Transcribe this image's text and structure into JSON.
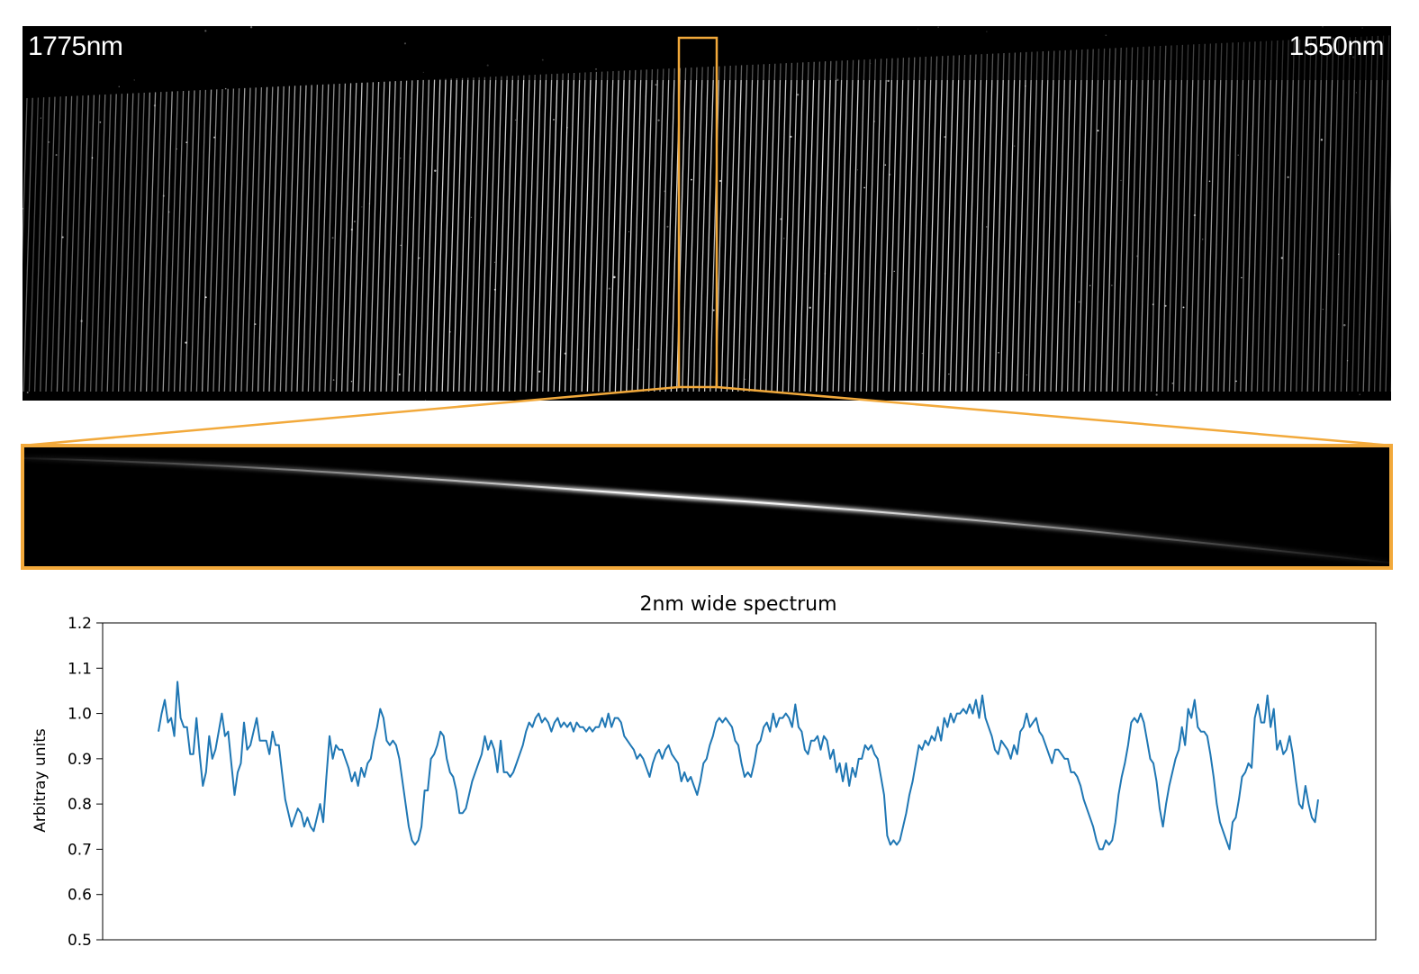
{
  "image": {
    "left_wavelength_label": "1775nm",
    "right_wavelength_label": "1550nm",
    "highlight_color": "#f2a93b"
  },
  "chart_data": {
    "type": "line",
    "title": "2nm wide spectrum",
    "xlabel": "",
    "ylabel": "Arbitray units",
    "ylim": [
      0.5,
      1.2
    ],
    "yticks": [
      "0.5",
      "0.6",
      "0.7",
      "0.8",
      "0.9",
      "1.0",
      "1.1",
      "1.2"
    ],
    "xticks_visible": false,
    "grid": false,
    "line_color": "#1f77b4",
    "series": [
      {
        "name": "",
        "values": [
          0.96,
          1.0,
          1.03,
          0.98,
          0.99,
          0.95,
          1.07,
          0.99,
          0.97,
          0.97,
          0.91,
          0.91,
          0.99,
          0.91,
          0.84,
          0.87,
          0.95,
          0.9,
          0.92,
          0.96,
          1.0,
          0.95,
          0.96,
          0.89,
          0.82,
          0.87,
          0.89,
          0.98,
          0.92,
          0.93,
          0.96,
          0.99,
          0.94,
          0.94,
          0.94,
          0.91,
          0.96,
          0.93,
          0.93,
          0.87,
          0.81,
          0.78,
          0.75,
          0.77,
          0.79,
          0.78,
          0.75,
          0.77,
          0.75,
          0.74,
          0.77,
          0.8,
          0.76,
          0.86,
          0.95,
          0.9,
          0.93,
          0.92,
          0.92,
          0.9,
          0.88,
          0.85,
          0.87,
          0.84,
          0.88,
          0.86,
          0.89,
          0.9,
          0.94,
          0.97,
          1.01,
          0.99,
          0.94,
          0.93,
          0.94,
          0.93,
          0.9,
          0.85,
          0.8,
          0.75,
          0.72,
          0.71,
          0.72,
          0.75,
          0.83,
          0.83,
          0.9,
          0.91,
          0.93,
          0.96,
          0.95,
          0.9,
          0.87,
          0.86,
          0.83,
          0.78,
          0.78,
          0.79,
          0.82,
          0.85,
          0.87,
          0.89,
          0.91,
          0.95,
          0.92,
          0.94,
          0.92,
          0.87,
          0.94,
          0.87,
          0.87,
          0.86,
          0.87,
          0.89,
          0.91,
          0.93,
          0.96,
          0.98,
          0.97,
          0.99,
          1.0,
          0.98,
          0.99,
          0.98,
          0.96,
          0.98,
          0.99,
          0.97,
          0.98,
          0.97,
          0.98,
          0.96,
          0.98,
          0.97,
          0.97,
          0.96,
          0.97,
          0.96,
          0.97,
          0.97,
          0.99,
          0.97,
          1.0,
          0.97,
          0.99,
          0.99,
          0.98,
          0.95,
          0.94,
          0.93,
          0.92,
          0.9,
          0.91,
          0.9,
          0.88,
          0.86,
          0.89,
          0.91,
          0.92,
          0.9,
          0.92,
          0.93,
          0.91,
          0.9,
          0.89,
          0.85,
          0.87,
          0.85,
          0.86,
          0.84,
          0.82,
          0.85,
          0.89,
          0.9,
          0.93,
          0.95,
          0.98,
          0.99,
          0.98,
          0.99,
          0.98,
          0.97,
          0.94,
          0.93,
          0.89,
          0.86,
          0.87,
          0.86,
          0.89,
          0.93,
          0.94,
          0.97,
          0.98,
          0.96,
          1.0,
          0.97,
          0.99,
          0.99,
          1.0,
          0.99,
          0.97,
          1.02,
          0.97,
          0.96,
          0.92,
          0.91,
          0.94,
          0.94,
          0.95,
          0.92,
          0.95,
          0.94,
          0.9,
          0.92,
          0.87,
          0.89,
          0.85,
          0.89,
          0.84,
          0.88,
          0.86,
          0.9,
          0.9,
          0.93,
          0.92,
          0.93,
          0.91,
          0.9,
          0.86,
          0.82,
          0.73,
          0.71,
          0.72,
          0.71,
          0.72,
          0.75,
          0.78,
          0.82,
          0.85,
          0.89,
          0.93,
          0.92,
          0.94,
          0.93,
          0.95,
          0.94,
          0.97,
          0.94,
          0.99,
          0.97,
          1.0,
          0.98,
          1.0,
          1.0,
          1.01,
          1.0,
          1.02,
          1.0,
          1.03,
          0.99,
          1.04,
          0.99,
          0.97,
          0.95,
          0.92,
          0.91,
          0.94,
          0.93,
          0.92,
          0.9,
          0.93,
          0.91,
          0.96,
          0.97,
          1.0,
          0.97,
          0.98,
          0.99,
          0.96,
          0.95,
          0.93,
          0.91,
          0.89,
          0.92,
          0.92,
          0.91,
          0.9,
          0.9,
          0.87,
          0.87,
          0.86,
          0.84,
          0.81,
          0.79,
          0.77,
          0.75,
          0.72,
          0.7,
          0.7,
          0.72,
          0.71,
          0.72,
          0.76,
          0.82,
          0.86,
          0.89,
          0.93,
          0.98,
          0.99,
          0.98,
          1.0,
          0.98,
          0.94,
          0.9,
          0.89,
          0.85,
          0.79,
          0.75,
          0.8,
          0.84,
          0.87,
          0.9,
          0.92,
          0.97,
          0.93,
          1.01,
          0.99,
          1.03,
          0.97,
          0.96,
          0.96,
          0.95,
          0.91,
          0.86,
          0.8,
          0.76,
          0.74,
          0.72,
          0.7,
          0.76,
          0.77,
          0.81,
          0.86,
          0.87,
          0.89,
          0.88,
          0.99,
          1.02,
          0.98,
          0.98,
          1.04,
          0.97,
          1.01,
          0.92,
          0.94,
          0.91,
          0.92,
          0.95,
          0.91,
          0.85,
          0.8,
          0.79,
          0.84,
          0.8,
          0.77,
          0.76,
          0.81
        ]
      }
    ]
  }
}
